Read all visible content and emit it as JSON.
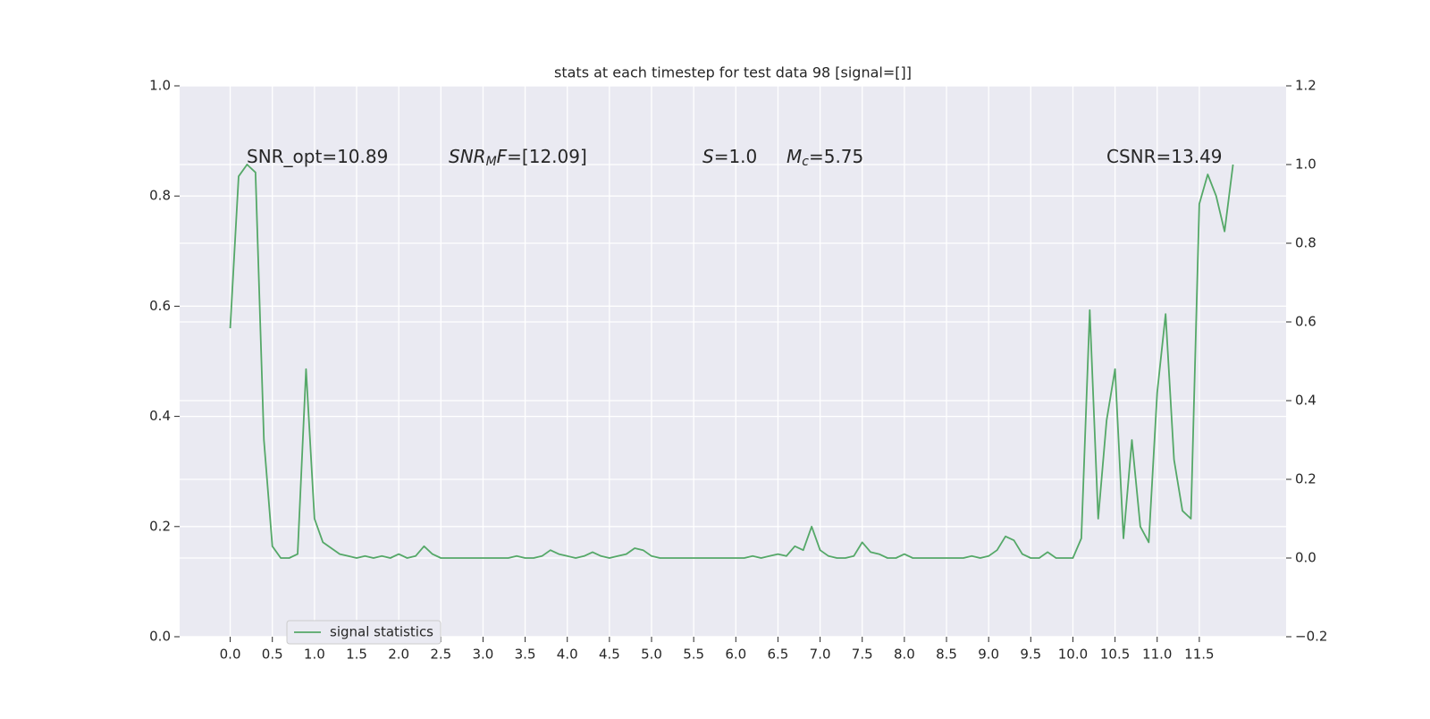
{
  "chart_data": {
    "type": "line",
    "title": "stats at each timestep for test data 98 [signal=[]]",
    "x": [
      0,
      0.1,
      0.2,
      0.3,
      0.4,
      0.5,
      0.6,
      0.7,
      0.8,
      0.9,
      1.0,
      1.1,
      1.2,
      1.3,
      1.4,
      1.5,
      1.6,
      1.7,
      1.8,
      1.9,
      2.0,
      2.1,
      2.2,
      2.3,
      2.4,
      2.5,
      2.6,
      2.7,
      2.8,
      2.9,
      3.0,
      3.1,
      3.2,
      3.3,
      3.4,
      3.5,
      3.6,
      3.7,
      3.8,
      3.9,
      4.0,
      4.1,
      4.2,
      4.3,
      4.4,
      4.5,
      4.6,
      4.7,
      4.8,
      4.9,
      5.0,
      5.1,
      5.2,
      5.3,
      5.4,
      5.5,
      5.6,
      5.7,
      5.8,
      5.9,
      6.0,
      6.1,
      6.2,
      6.3,
      6.4,
      6.5,
      6.6,
      6.7,
      6.8,
      6.9,
      7.0,
      7.1,
      7.2,
      7.3,
      7.4,
      7.5,
      7.6,
      7.7,
      7.8,
      7.9,
      8.0,
      8.1,
      8.2,
      8.3,
      8.4,
      8.5,
      8.6,
      8.7,
      8.8,
      8.9,
      9.0,
      9.1,
      9.2,
      9.3,
      9.4,
      9.5,
      9.6,
      9.7,
      9.8,
      9.9,
      10.0,
      10.1,
      10.2,
      10.3,
      10.4,
      10.5,
      10.6,
      10.7,
      10.8,
      10.9,
      11.0,
      11.1,
      11.2,
      11.3,
      11.4,
      11.5,
      11.6,
      11.7,
      11.8,
      11.9
    ],
    "series": [
      {
        "name": "signal statistics",
        "color": "#55a868",
        "axis": "y2",
        "values": [
          0.584,
          0.97,
          1.0,
          0.98,
          0.3,
          0.03,
          0.0,
          0.0,
          0.01,
          0.48,
          0.1,
          0.04,
          0.025,
          0.01,
          0.005,
          0.0,
          0.005,
          0.0,
          0.005,
          0.0,
          0.01,
          0.0,
          0.005,
          0.03,
          0.01,
          0.0,
          0.0,
          0.0,
          0.0,
          0.0,
          0.0,
          0.0,
          0.0,
          0.0,
          0.005,
          0.0,
          0.0,
          0.005,
          0.02,
          0.01,
          0.005,
          0.0,
          0.005,
          0.015,
          0.005,
          0.0,
          0.005,
          0.01,
          0.025,
          0.02,
          0.005,
          0.0,
          0.0,
          0.0,
          0.0,
          0.0,
          0.0,
          0.0,
          0.0,
          0.0,
          0.0,
          0.0,
          0.005,
          0.0,
          0.005,
          0.01,
          0.005,
          0.03,
          0.02,
          0.08,
          0.02,
          0.005,
          0.0,
          0.0,
          0.005,
          0.04,
          0.015,
          0.01,
          0.0,
          0.0,
          0.01,
          0.0,
          0.0,
          0.0,
          0.0,
          0.0,
          0.0,
          0.0,
          0.005,
          0.0,
          0.005,
          0.02,
          0.055,
          0.045,
          0.01,
          0.0,
          0.0,
          0.015,
          0.0,
          0.0,
          0.0,
          0.05,
          0.63,
          0.1,
          0.35,
          0.48,
          0.05,
          0.3,
          0.08,
          0.04,
          0.42,
          0.62,
          0.25,
          0.12,
          0.1,
          0.9,
          0.975,
          0.92,
          0.83,
          1.0
        ]
      }
    ],
    "xlim": [
      -0.6,
      12.53
    ],
    "xticks": [
      {
        "value": 0,
        "label": "0.0"
      },
      0.5,
      {
        "value": 1,
        "label": "1.0"
      },
      1.5,
      {
        "value": 2,
        "label": "2.0"
      },
      2.5,
      {
        "value": 3,
        "label": "3.0"
      },
      3.5,
      {
        "value": 4,
        "label": "4.0"
      },
      4.5,
      {
        "value": 5,
        "label": "5.0"
      },
      5.5,
      {
        "value": 6,
        "label": "6.0"
      },
      6.5,
      {
        "value": 7,
        "label": "7.0"
      },
      7.5,
      {
        "value": 8,
        "label": "8.0"
      },
      8.5,
      {
        "value": 9,
        "label": "9.0"
      },
      9.5,
      {
        "value": 10,
        "label": "10.0"
      },
      10.5,
      {
        "value": 11,
        "label": "11.0"
      },
      11.5
    ],
    "ylim": [
      0,
      1
    ],
    "yticks": [
      {
        "value": 0,
        "label": "0.0"
      },
      0.2,
      0.4,
      0.6,
      0.8,
      {
        "value": 1,
        "label": "1.0"
      }
    ],
    "y2lim": [
      -0.2,
      1.2
    ],
    "y2ticks": [
      {
        "value": -0.2,
        "label": "−0.2"
      },
      {
        "value": 0,
        "label": "0.0"
      },
      0.2,
      0.4,
      0.6,
      0.8,
      {
        "value": 1,
        "label": "1.0"
      },
      1.2
    ],
    "grid": true,
    "annotations": [
      [
        {
          "text": "SNR_opt=10.89"
        }
      ],
      [
        {
          "text": "SNR",
          "italic": true
        },
        {
          "text": "M",
          "italic": true,
          "sub": true
        },
        {
          "text": "F",
          "italic": true
        },
        {
          "text": "=[12.09]"
        }
      ],
      [
        {
          "text": "S",
          "italic": true
        },
        {
          "text": "=1.0"
        }
      ],
      [
        {
          "text": "M",
          "italic": true
        },
        {
          "text": "c",
          "italic": true,
          "sub": true
        },
        {
          "text": "=5.75"
        }
      ],
      [
        {
          "text": "CSNR=13.49"
        }
      ]
    ]
  }
}
